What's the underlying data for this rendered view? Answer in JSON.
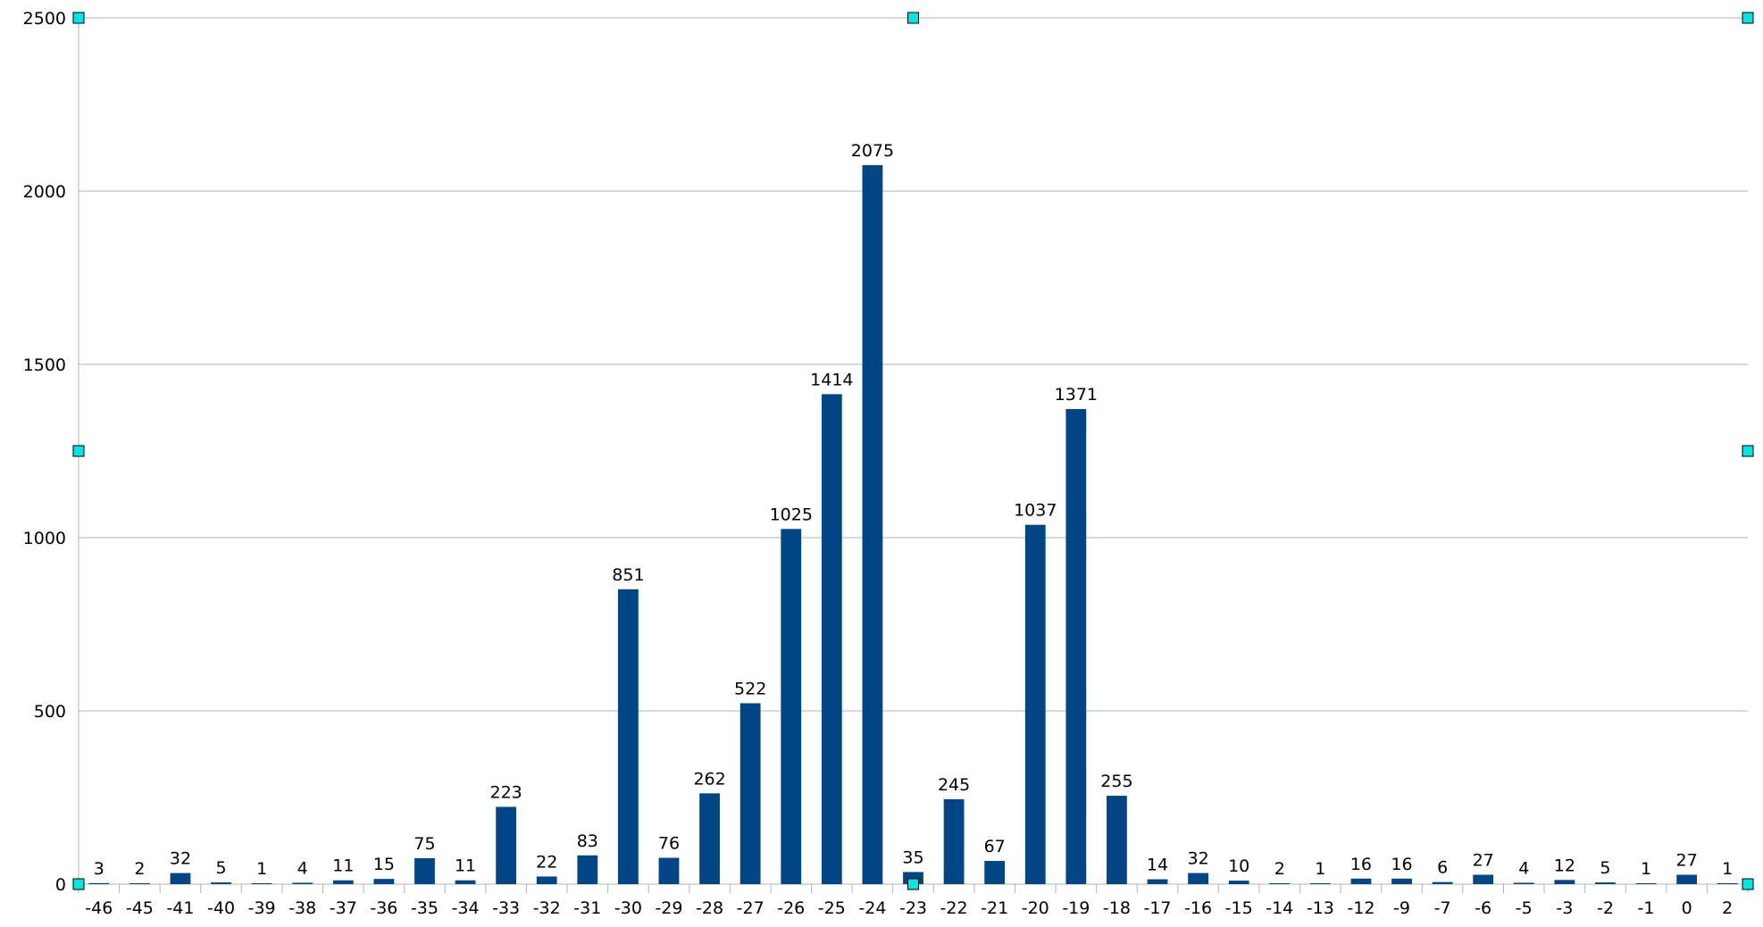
{
  "chart_data": {
    "type": "bar",
    "categories": [
      "-46",
      "-45",
      "-41",
      "-40",
      "-39",
      "-38",
      "-37",
      "-36",
      "-35",
      "-34",
      "-33",
      "-32",
      "-31",
      "-30",
      "-29",
      "-28",
      "-27",
      "-26",
      "-25",
      "-24",
      "-23",
      "-22",
      "-21",
      "-20",
      "-19",
      "-18",
      "-17",
      "-16",
      "-15",
      "-14",
      "-13",
      "-12",
      "-9",
      "-7",
      "-6",
      "-5",
      "-3",
      "-2",
      "-1",
      "0",
      "2"
    ],
    "values": [
      3,
      2,
      32,
      5,
      1,
      4,
      11,
      15,
      75,
      11,
      223,
      22,
      83,
      851,
      76,
      262,
      522,
      1025,
      1414,
      2075,
      35,
      245,
      67,
      1037,
      1371,
      255,
      14,
      32,
      10,
      2,
      1,
      16,
      16,
      6,
      27,
      4,
      12,
      5,
      1,
      27,
      1
    ],
    "title": "",
    "xlabel": "",
    "ylabel": "",
    "ylim": [
      0,
      2500
    ],
    "yticks": [
      0,
      500,
      1000,
      1500,
      2000,
      2500
    ],
    "grid": true,
    "legend": "none",
    "bar_color": "#004586",
    "gridline_color": "#b3b3b3",
    "selection_handle_color": "#00e5e5"
  }
}
